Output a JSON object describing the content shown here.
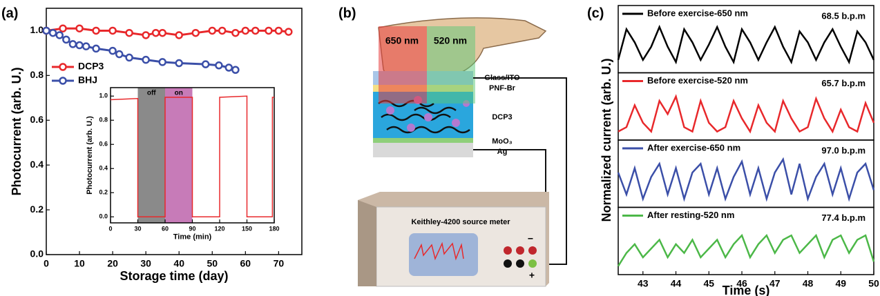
{
  "chart_data": [
    {
      "type": "line",
      "label": "(a)",
      "xlabel": "Storage time (day)",
      "ylabel": "Photocurrent (arb. U.)",
      "xlim": [
        0,
        77
      ],
      "xticks": [
        0,
        10,
        20,
        30,
        40,
        50,
        60,
        70
      ],
      "ylim": [
        0,
        1.1
      ],
      "yticks": [
        {
          "value": 0,
          "label": "0.0"
        },
        0.2,
        0.4,
        0.6,
        0.8,
        {
          "value": 1,
          "label": "1.0"
        }
      ],
      "legend": "upper left",
      "series": [
        {
          "name": "DCP3",
          "color": "#e8282b",
          "x": [
            0,
            5,
            10,
            15,
            20,
            25,
            30,
            33,
            35,
            40,
            45,
            50,
            53,
            57,
            60,
            63,
            67,
            70,
            73
          ],
          "values": [
            1.0,
            1.01,
            1.01,
            1.0,
            1.0,
            0.99,
            0.98,
            0.99,
            0.99,
            0.98,
            0.99,
            1.0,
            1.0,
            0.99,
            1.0,
            1.0,
            1.0,
            1.0,
            0.995
          ]
        },
        {
          "name": "BHJ",
          "color": "#3b4fa8",
          "x": [
            0,
            2,
            4,
            6,
            8,
            10,
            12,
            15,
            20,
            22,
            25,
            30,
            35,
            40,
            48,
            52,
            55,
            57
          ],
          "values": [
            1.0,
            0.99,
            0.98,
            0.96,
            0.94,
            0.935,
            0.93,
            0.92,
            0.91,
            0.895,
            0.88,
            0.87,
            0.86,
            0.855,
            0.85,
            0.845,
            0.835,
            0.825
          ]
        }
      ]
    },
    {
      "type": "line",
      "xlabel": "Time (min)",
      "ylabel": "Photocurrent (arb. U.)",
      "xlim": [
        0,
        180
      ],
      "xticks": [
        0,
        30,
        60,
        90,
        120,
        150,
        180
      ],
      "ylim": [
        -0.05,
        1.07
      ],
      "yticks": [
        {
          "value": 0,
          "label": "0.0"
        },
        0.2,
        0.4,
        0.6,
        0.8,
        {
          "value": 1,
          "label": "1.0"
        }
      ],
      "regions": [
        {
          "label": "off",
          "x": [
            30,
            60
          ],
          "color": "#8a8a8a"
        },
        {
          "label": "on",
          "x": [
            60,
            90
          ],
          "color": "#c77bb8"
        }
      ],
      "series": [
        {
          "color": "#e8282b",
          "x": [
            0,
            30,
            30,
            60,
            60,
            90,
            90,
            120,
            120,
            150,
            150,
            178,
            178,
            180
          ],
          "values": [
            0.97,
            0.98,
            0,
            0,
            0.99,
            0.99,
            0,
            0,
            0.99,
            1.0,
            0,
            0,
            0.99,
            0.99
          ]
        }
      ]
    },
    {
      "type": "line",
      "label": "(c)",
      "xlabel": "Time (s)",
      "ylabel": "Normalized current (arb. U.)",
      "xlim": [
        42.25,
        50
      ],
      "xticks": [
        43,
        44,
        45,
        46,
        47,
        48,
        49,
        50
      ],
      "ylim": [
        0,
        1
      ],
      "x": [
        42.25,
        42.5,
        42.75,
        43,
        43.25,
        43.5,
        43.75,
        44,
        44.25,
        44.5,
        44.75,
        45,
        45.25,
        45.5,
        45.75,
        46,
        46.25,
        46.5,
        46.75,
        47,
        47.25,
        47.5,
        47.75,
        48,
        48.25,
        48.5,
        48.75,
        49,
        49.25,
        49.5,
        49.75,
        50
      ],
      "series": [
        {
          "name": "Before exercise-650 nm",
          "annotation": "68.5 b.p.m",
          "color": "#000000",
          "values": [
            0.2,
            0.9,
            0.6,
            0.2,
            0.5,
            0.95,
            0.5,
            0.15,
            0.9,
            0.6,
            0.2,
            0.55,
            0.95,
            0.5,
            0.15,
            0.9,
            0.6,
            0.2,
            0.6,
            0.95,
            0.5,
            0.15,
            0.85,
            0.6,
            0.2,
            0.6,
            0.9,
            0.5,
            0.15,
            0.85,
            0.6,
            0.2
          ]
        },
        {
          "name": "Before exercise-520 nm",
          "annotation": "65.7 b.p.m",
          "color": "#e8282b",
          "values": [
            0.1,
            0.2,
            0.7,
            0.3,
            0.1,
            0.8,
            0.5,
            0.9,
            0.2,
            0.1,
            0.8,
            0.3,
            0.1,
            0.2,
            0.8,
            0.4,
            0.1,
            0.7,
            0.3,
            0.1,
            0.8,
            0.4,
            0.1,
            0.2,
            0.85,
            0.4,
            0.1,
            0.6,
            0.2,
            0.1,
            0.75,
            0.3
          ]
        },
        {
          "name": "After exercise-650 nm",
          "annotation": "97.0 b.p.m",
          "color": "#3b4fa8",
          "values": [
            0.7,
            0.2,
            0.8,
            0.1,
            0.6,
            0.9,
            0.2,
            0.8,
            0.1,
            0.7,
            0.9,
            0.2,
            0.8,
            0.1,
            0.6,
            0.95,
            0.2,
            0.8,
            0.1,
            0.7,
            1.0,
            0.2,
            0.9,
            0.1,
            0.6,
            0.9,
            0.2,
            0.8,
            0.1,
            0.7,
            0.9,
            0.3
          ]
        },
        {
          "name": "After resting-520 nm",
          "annotation": "77.4 b.p.m",
          "color": "#4cb848",
          "values": [
            0.1,
            0.4,
            0.6,
            0.3,
            0.5,
            0.7,
            0.3,
            0.6,
            0.4,
            0.7,
            0.3,
            0.5,
            0.7,
            0.3,
            0.6,
            0.8,
            0.3,
            0.6,
            0.8,
            0.4,
            0.7,
            0.8,
            0.4,
            0.6,
            0.8,
            0.3,
            0.7,
            0.8,
            0.4,
            0.7,
            0.8,
            0.2
          ]
        }
      ]
    }
  ],
  "diagram": {
    "label": "(b)",
    "wavelengths": [
      "650 nm",
      "520 nm"
    ],
    "layers": [
      "Glass/ITO",
      "PNF-Br",
      "DCP3",
      "MoO₃",
      "Ag"
    ],
    "instrument": "Keithley-4200 source meter",
    "terminals": [
      "−",
      "+"
    ]
  }
}
